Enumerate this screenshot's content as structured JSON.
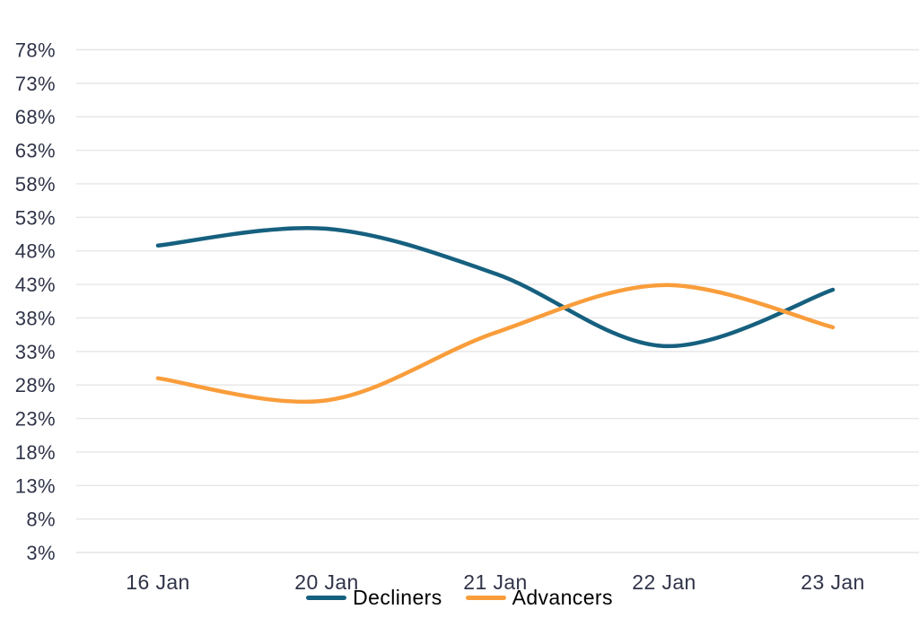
{
  "chart_data": {
    "type": "line",
    "title": "",
    "xlabel": "",
    "ylabel": "",
    "categories": [
      "16 Jan",
      "20 Jan",
      "21 Jan",
      "22 Jan",
      "23 Jan"
    ],
    "series": [
      {
        "name": "Decliners",
        "color": "#16607f",
        "values": [
          48.8,
          51.3,
          44.6,
          33.8,
          42.2
        ]
      },
      {
        "name": "Advancers",
        "color": "#f99d3b",
        "values": [
          29.0,
          25.7,
          35.8,
          42.9,
          36.6
        ]
      }
    ],
    "y_axis": {
      "min": 3,
      "max": 78,
      "step": 5,
      "tick_suffix": "%",
      "tick_labels": [
        "78%",
        "73%",
        "68%",
        "63%",
        "58%",
        "53%",
        "48%",
        "43%",
        "38%",
        "33%",
        "28%",
        "23%",
        "18%",
        "13%",
        "8%",
        "3%"
      ]
    },
    "x_axis": {
      "tick_labels": [
        "16 Jan",
        "20 Jan",
        "21 Jan",
        "22 Jan",
        "23 Jan"
      ]
    },
    "grid": true,
    "legend_position": "bottom-center",
    "colors": {
      "background": "#ffffff",
      "grid": "#e6e6e6",
      "tick_text": "#303449",
      "decliners_line": "#16607f",
      "advancers_line": "#f99d3b"
    }
  }
}
